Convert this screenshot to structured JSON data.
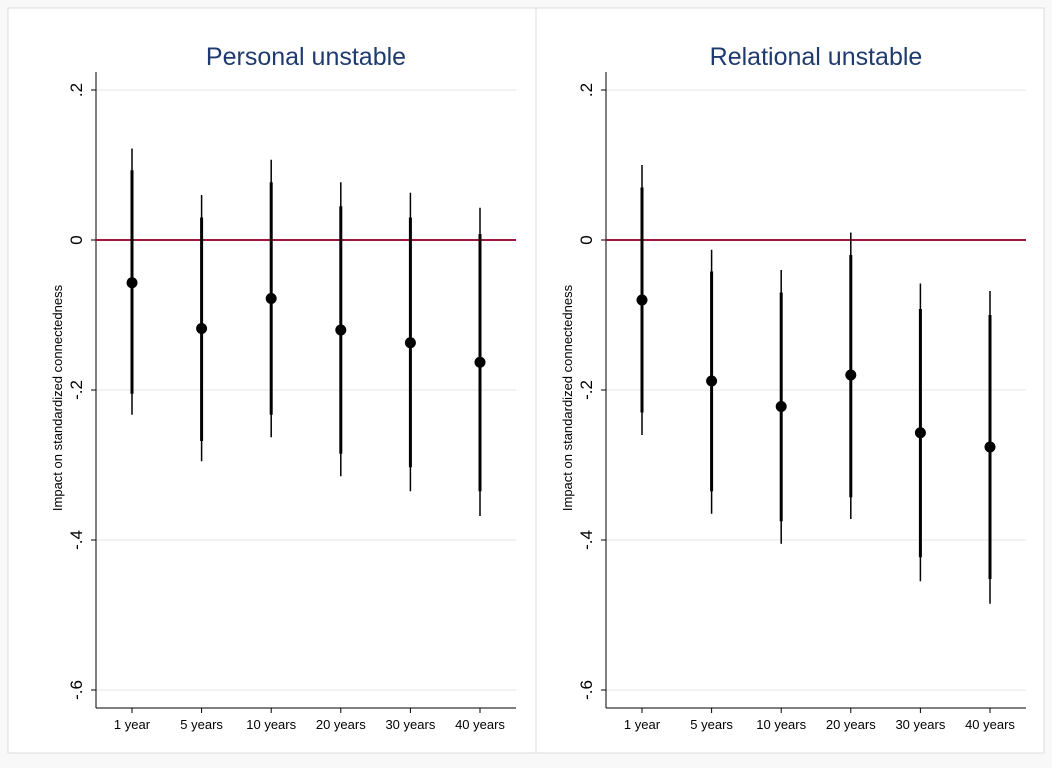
{
  "colors": {
    "background": "#f8f8f8",
    "panel": "#ffffff",
    "border": "#dddddd",
    "grid": "#e6e6e6",
    "title": "#1f3a6e",
    "reference_line": "#a0163c",
    "marks": "#000000"
  },
  "chart_data": [
    {
      "type": "scatter",
      "title": "Personal unstable",
      "ylabel": "Impact on standardized connectedness",
      "xlabel": "",
      "ylim": [
        -0.6,
        0.2
      ],
      "yticks": [
        0.2,
        0,
        -0.2,
        -0.4,
        -0.6
      ],
      "ytick_labels": [
        ".2",
        "0",
        "-.2",
        "-.4",
        "-.6"
      ],
      "grid": true,
      "reference_line": 0,
      "categories": [
        "1 year",
        "5 years",
        "10 years",
        "20 years",
        "30 years",
        "40 years"
      ],
      "values": [
        -0.057,
        -0.118,
        -0.078,
        -0.12,
        -0.137,
        -0.163
      ],
      "ci_inner": [
        [
          -0.205,
          0.093
        ],
        [
          -0.268,
          0.03
        ],
        [
          -0.233,
          0.077
        ],
        [
          -0.285,
          0.045
        ],
        [
          -0.303,
          0.03
        ],
        [
          -0.335,
          0.008
        ]
      ],
      "ci_outer": [
        [
          -0.233,
          0.122
        ],
        [
          -0.295,
          0.06
        ],
        [
          -0.263,
          0.107
        ],
        [
          -0.315,
          0.077
        ],
        [
          -0.335,
          0.063
        ],
        [
          -0.368,
          0.043
        ]
      ]
    },
    {
      "type": "scatter",
      "title": "Relational unstable",
      "ylabel": "Impact on standardized connectedness",
      "xlabel": "",
      "ylim": [
        -0.6,
        0.2
      ],
      "yticks": [
        0.2,
        0,
        -0.2,
        -0.4,
        -0.6
      ],
      "ytick_labels": [
        ".2",
        "0",
        "-.2",
        "-.4",
        "-.6"
      ],
      "grid": true,
      "reference_line": 0,
      "categories": [
        "1 year",
        "5 years",
        "10 years",
        "20 years",
        "30 years",
        "40 years"
      ],
      "values": [
        -0.08,
        -0.188,
        -0.222,
        -0.18,
        -0.257,
        -0.276
      ],
      "ci_inner": [
        [
          -0.23,
          0.07
        ],
        [
          -0.335,
          -0.042
        ],
        [
          -0.375,
          -0.07
        ],
        [
          -0.343,
          -0.02
        ],
        [
          -0.423,
          -0.092
        ],
        [
          -0.452,
          -0.1
        ]
      ],
      "ci_outer": [
        [
          -0.26,
          0.1
        ],
        [
          -0.365,
          -0.013
        ],
        [
          -0.405,
          -0.04
        ],
        [
          -0.372,
          0.01
        ],
        [
          -0.455,
          -0.058
        ],
        [
          -0.485,
          -0.068
        ]
      ]
    }
  ]
}
